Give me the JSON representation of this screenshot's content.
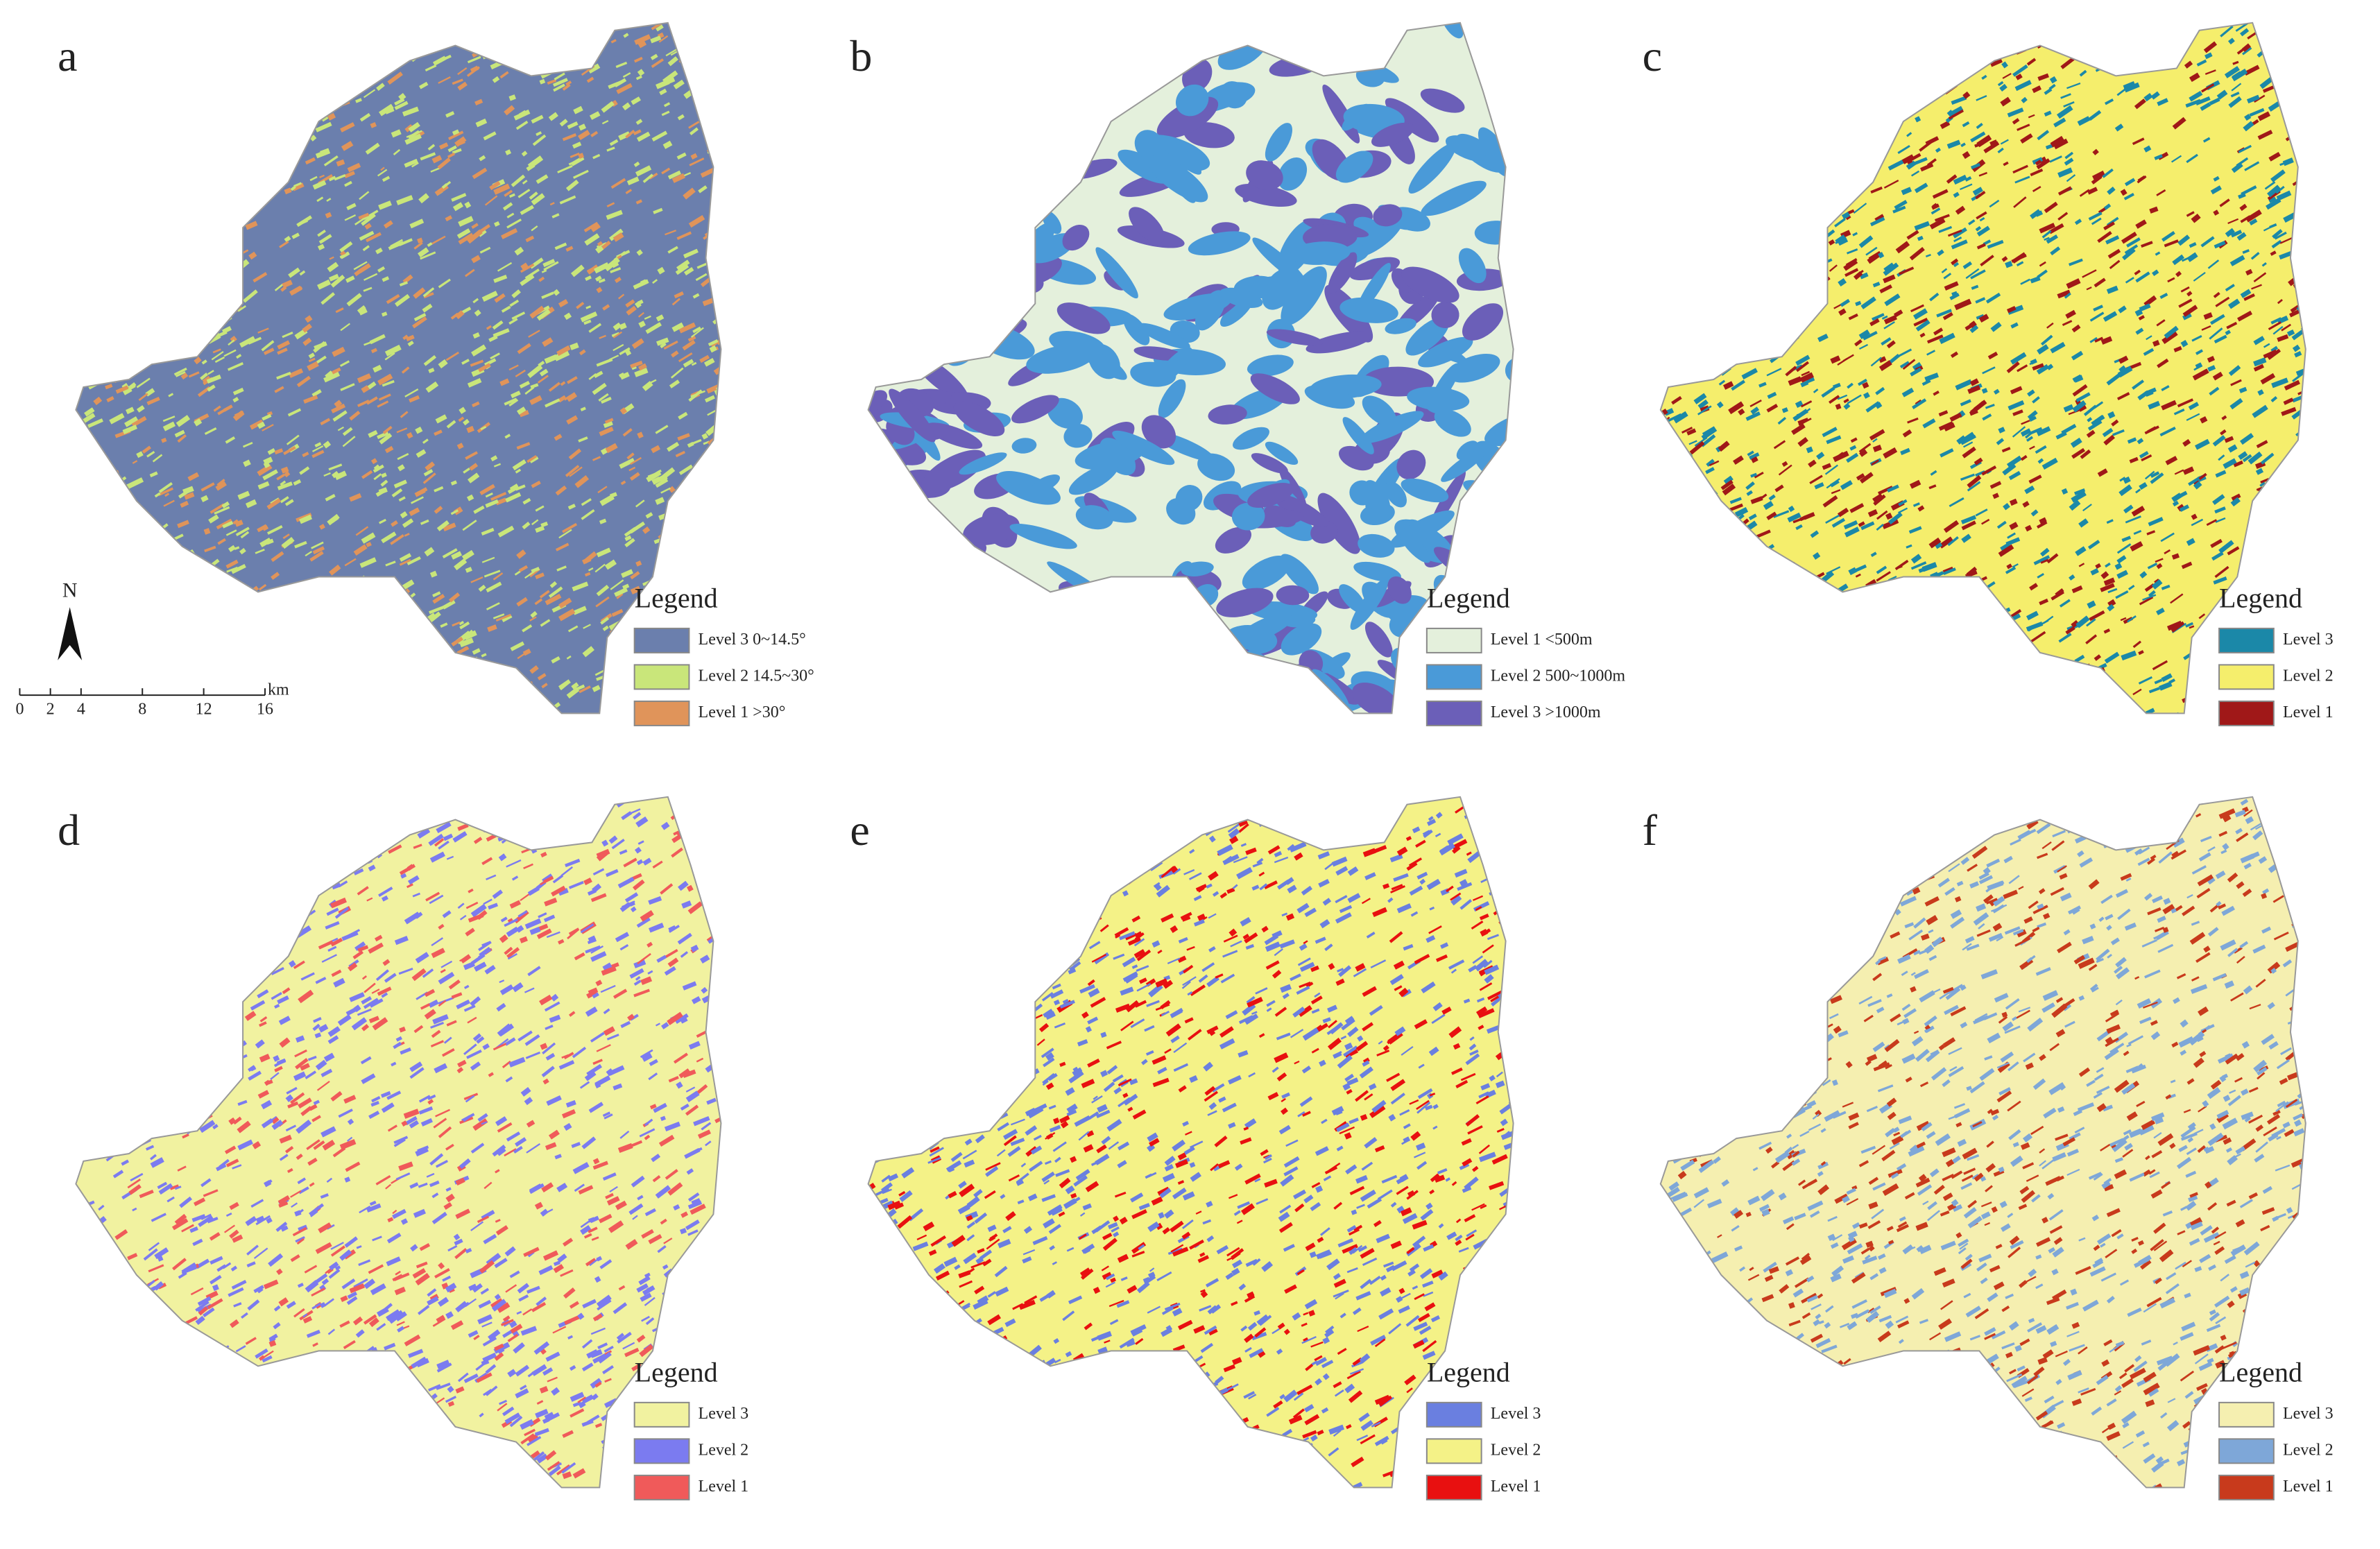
{
  "panels": [
    {
      "label": "a",
      "legend": {
        "title": "Legend",
        "items": [
          {
            "label": "Level 3 0~14.5°",
            "color": "#6b7fad"
          },
          {
            "label": "Level 2 14.5~30°",
            "color": "#c9e67a"
          },
          {
            "label": "Level 1 >30°",
            "color": "#e0945a"
          }
        ]
      }
    },
    {
      "label": "b",
      "legend": {
        "title": "Legend",
        "items": [
          {
            "label": "Level 1 <500m",
            "color": "#e4f0dc"
          },
          {
            "label": "Level 2 500~1000m",
            "color": "#4a9ad8"
          },
          {
            "label": "Level 3 >1000m",
            "color": "#6b5fb8"
          }
        ]
      }
    },
    {
      "label": "c",
      "legend": {
        "title": "Legend",
        "items": [
          {
            "label": "Level 3",
            "color": "#1b88a8"
          },
          {
            "label": "Level 2",
            "color": "#f5ee6c"
          },
          {
            "label": "Level 1",
            "color": "#a01818"
          }
        ]
      }
    },
    {
      "label": "d",
      "legend": {
        "title": "Legend",
        "items": [
          {
            "label": "Level 3",
            "color": "#f1f2a0"
          },
          {
            "label": "Level 2",
            "color": "#7b7bf0"
          },
          {
            "label": "Level 1",
            "color": "#f05a5a"
          }
        ]
      }
    },
    {
      "label": "e",
      "legend": {
        "title": "Legend",
        "items": [
          {
            "label": "Level 3",
            "color": "#6a7fe0"
          },
          {
            "label": "Level 2",
            "color": "#f4f287"
          },
          {
            "label": "Level 1",
            "color": "#e81010"
          }
        ]
      }
    },
    {
      "label": "f",
      "legend": {
        "title": "Legend",
        "items": [
          {
            "label": "Level 3",
            "color": "#f5efb0"
          },
          {
            "label": "Level 2",
            "color": "#7ea7d8"
          },
          {
            "label": "Level 1",
            "color": "#c83a1c"
          }
        ]
      }
    }
  ],
  "north_arrow": "N",
  "scale_bar": {
    "ticks": [
      0,
      2,
      4,
      8,
      12,
      16
    ],
    "unit": "km"
  }
}
